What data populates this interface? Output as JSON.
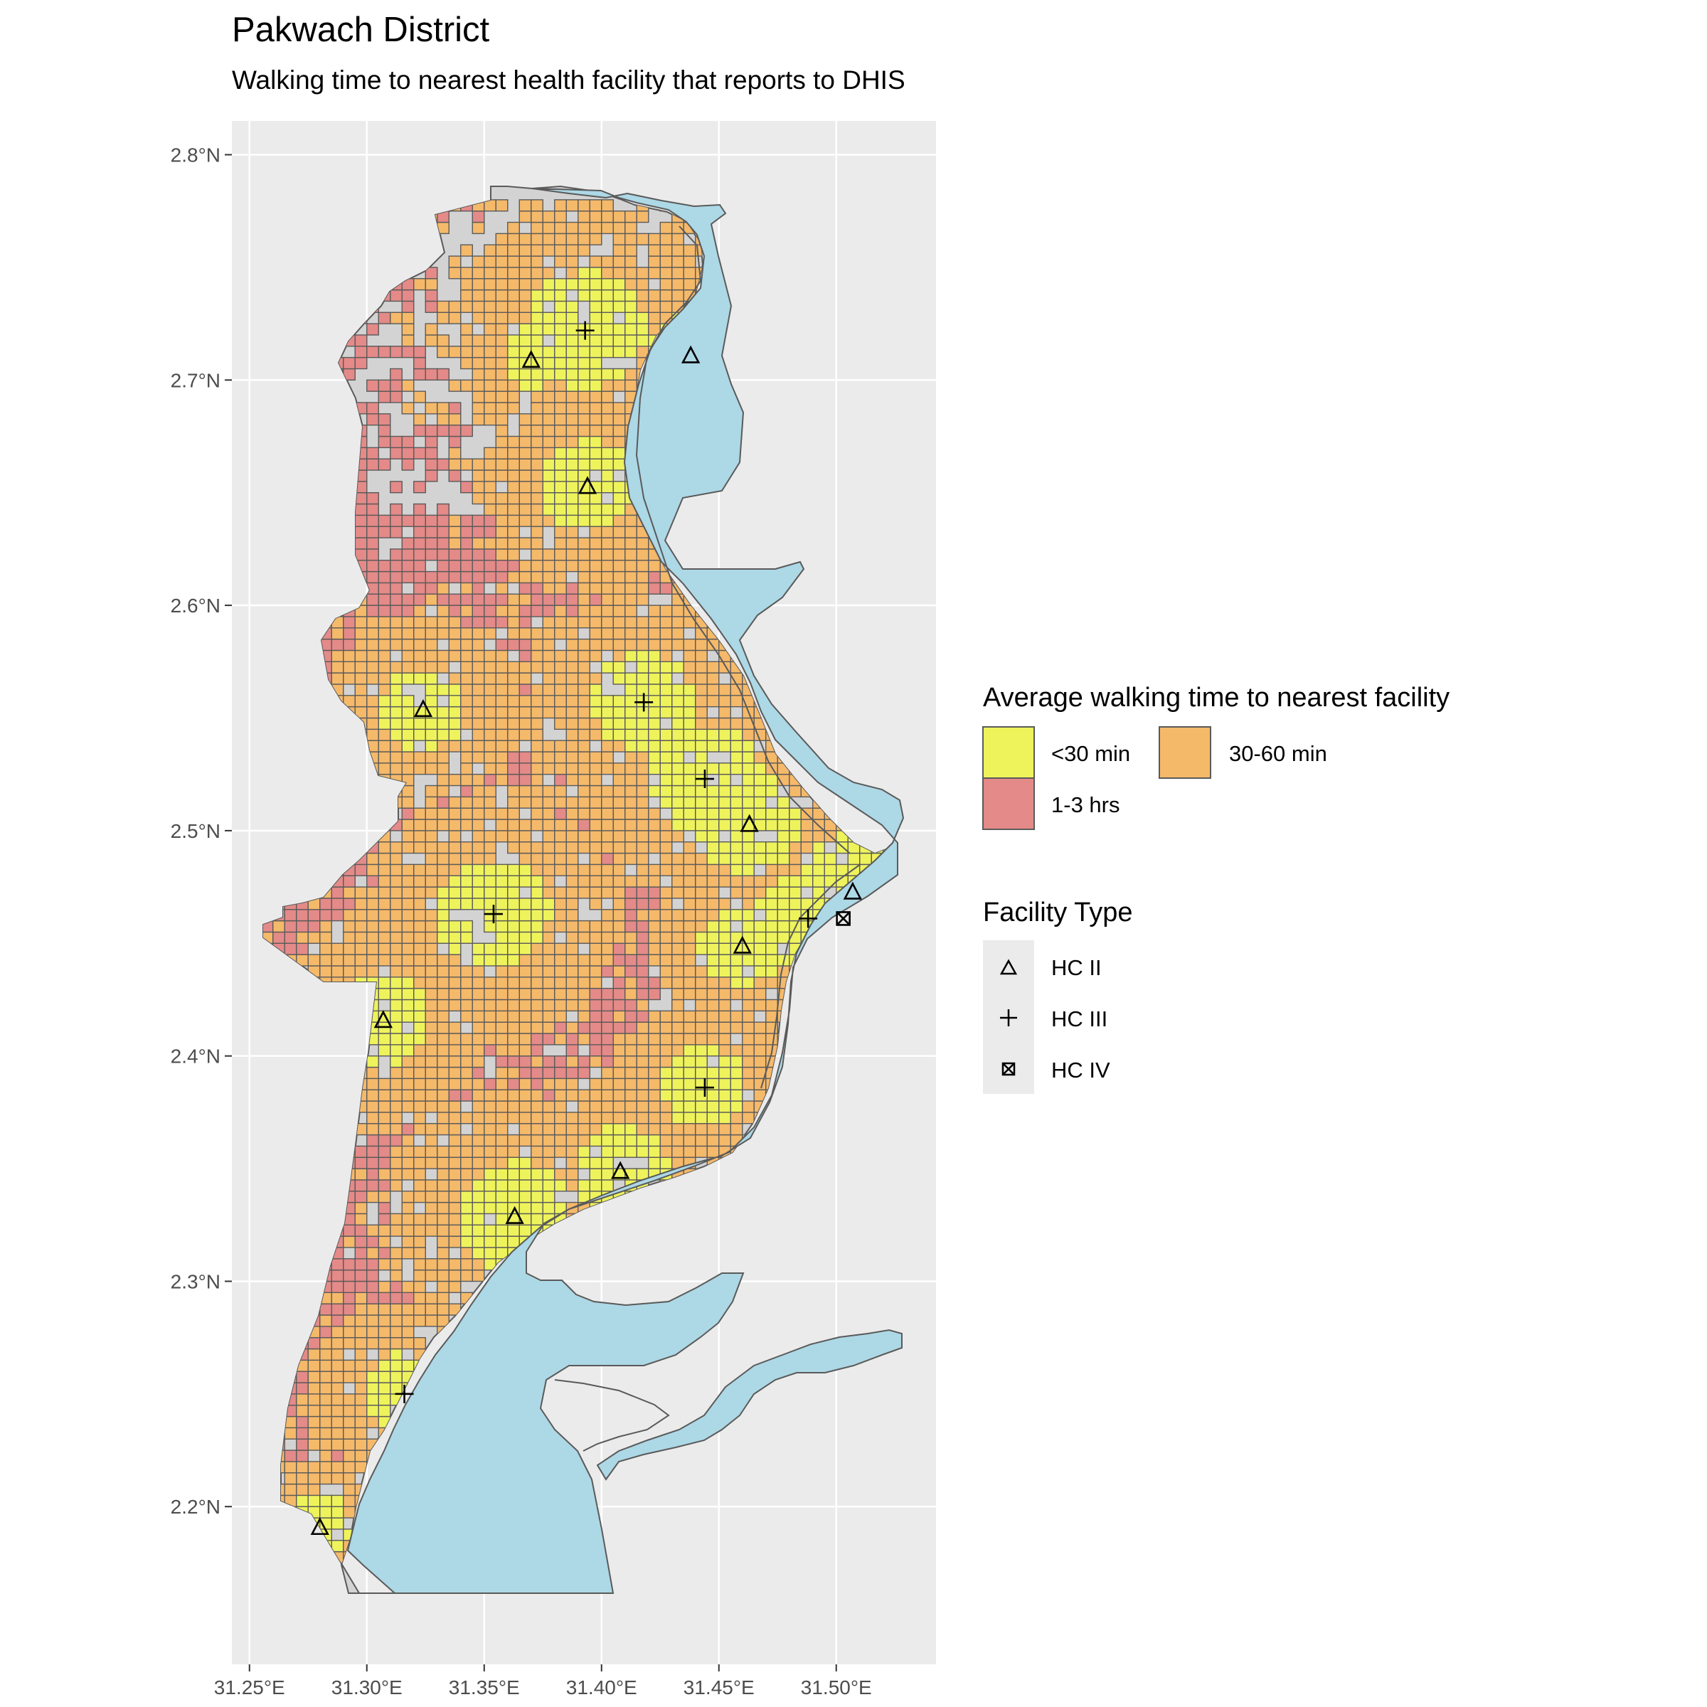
{
  "title": "Pakwach District",
  "subtitle": "Walking time to nearest health facility that reports to DHIS",
  "colors": {
    "panel": "#ebebeb",
    "grid": "#ffffff",
    "district": "#d3d3d3",
    "water": "#add8e6",
    "lt30": "#eef35c",
    "m30_60": "#f5b96a",
    "h1_3": "#e48a88",
    "outline": "#5a5a5a"
  },
  "chart_data": {
    "type": "map",
    "x_ticks": [
      "31.25°E",
      "31.30°E",
      "31.35°E",
      "31.40°E",
      "31.45°E",
      "31.50°E"
    ],
    "y_ticks": [
      "2.8°N",
      "2.7°N",
      "2.6°N",
      "2.5°N",
      "2.4°N",
      "2.3°N",
      "2.2°N"
    ],
    "x_tick_values": [
      31.25,
      31.3,
      31.35,
      31.4,
      31.45,
      31.5
    ],
    "y_tick_values": [
      2.8,
      2.7,
      2.6,
      2.5,
      2.4,
      2.3,
      2.2
    ],
    "xlim": [
      31.2425,
      31.5425
    ],
    "ylim": [
      2.13,
      2.815
    ],
    "fill_legend": {
      "title": "Average walking time to nearest facility",
      "items": [
        {
          "label": "<30 min",
          "color": "#eef35c"
        },
        {
          "label": "30-60 min",
          "color": "#f5b96a"
        },
        {
          "label": "1-3 hrs",
          "color": "#e48a88"
        }
      ]
    },
    "shape_legend": {
      "title": "Facility Type",
      "items": [
        {
          "label": "HC II",
          "shape": "triangle-icon"
        },
        {
          "label": "HC III",
          "shape": "plus-icon"
        },
        {
          "label": "HC IV",
          "shape": "boxed-x-icon"
        }
      ]
    },
    "facilities": [
      {
        "type": "HC II",
        "lon": 31.37,
        "lat": 2.709
      },
      {
        "type": "HC III",
        "lon": 31.393,
        "lat": 2.722
      },
      {
        "type": "HC II",
        "lon": 31.438,
        "lat": 2.711
      },
      {
        "type": "HC II",
        "lon": 31.394,
        "lat": 2.653
      },
      {
        "type": "HC II",
        "lon": 31.324,
        "lat": 2.554
      },
      {
        "type": "HC III",
        "lon": 31.418,
        "lat": 2.557
      },
      {
        "type": "HC III",
        "lon": 31.444,
        "lat": 2.523
      },
      {
        "type": "HC II",
        "lon": 31.463,
        "lat": 2.503
      },
      {
        "type": "HC II",
        "lon": 31.507,
        "lat": 2.473
      },
      {
        "type": "HC III",
        "lon": 31.354,
        "lat": 2.463
      },
      {
        "type": "HC III",
        "lon": 31.488,
        "lat": 2.461
      },
      {
        "type": "HC IV",
        "lon": 31.503,
        "lat": 2.461
      },
      {
        "type": "HC II",
        "lon": 31.46,
        "lat": 2.449
      },
      {
        "type": "HC II",
        "lon": 31.307,
        "lat": 2.416
      },
      {
        "type": "HC III",
        "lon": 31.444,
        "lat": 2.386
      },
      {
        "type": "HC II",
        "lon": 31.408,
        "lat": 2.349
      },
      {
        "type": "HC II",
        "lon": 31.363,
        "lat": 2.329
      },
      {
        "type": "HC III",
        "lon": 31.316,
        "lat": 2.25
      },
      {
        "type": "HC II",
        "lon": 31.28,
        "lat": 2.191
      }
    ]
  }
}
